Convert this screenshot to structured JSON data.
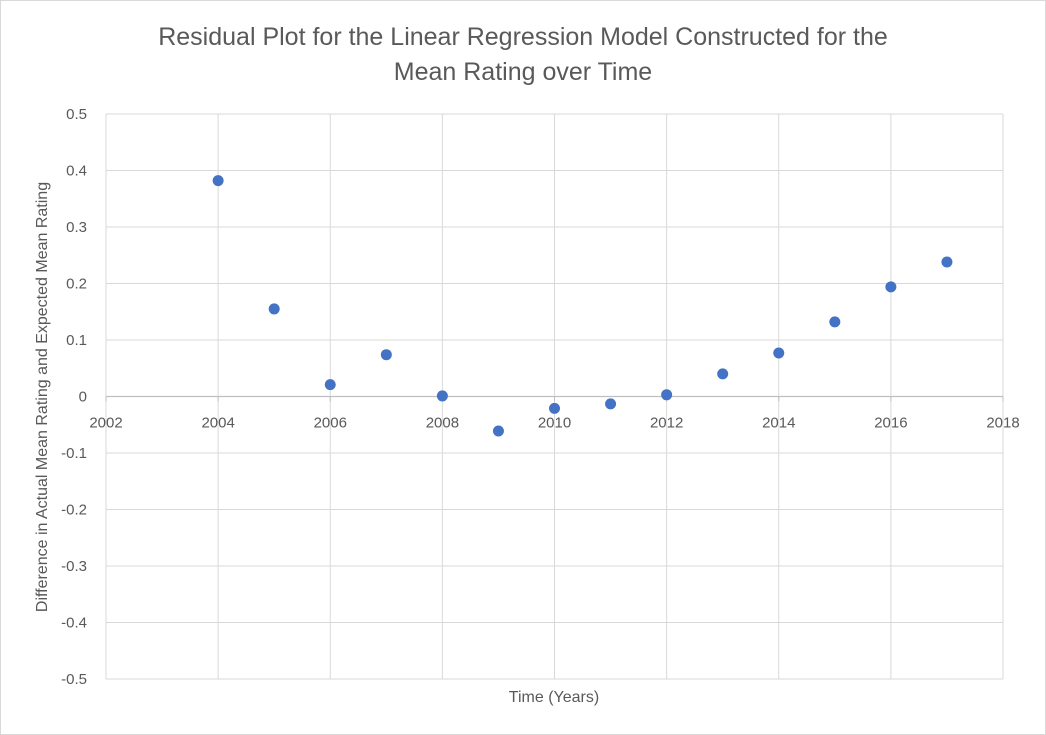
{
  "chart_data": {
    "type": "scatter",
    "title_lines": [
      "Residual Plot for the Linear Regression Model Constructed for the",
      "Mean Rating over Time"
    ],
    "xlabel": "Time (Years)",
    "ylabel": "Difference in Actual Mean Rating and Expected Mean Rating",
    "xlim": [
      2002,
      2018
    ],
    "ylim": [
      -0.5,
      0.5
    ],
    "x_ticks": [
      "2002",
      "2004",
      "2006",
      "2008",
      "2010",
      "2012",
      "2014",
      "2016",
      "2018"
    ],
    "y_ticks": [
      "0.5",
      "0.4",
      "0.3",
      "0.2",
      "0.1",
      "0",
      "-0.1",
      "-0.2",
      "-0.3",
      "-0.4",
      "-0.5"
    ],
    "grid": true,
    "marker_color": "#4472c4",
    "gridline_color": "#d9d9d9",
    "points": [
      {
        "x": 2004,
        "y": 0.382
      },
      {
        "x": 2005,
        "y": 0.155
      },
      {
        "x": 2006,
        "y": 0.021
      },
      {
        "x": 2007,
        "y": 0.074
      },
      {
        "x": 2008,
        "y": 0.001
      },
      {
        "x": 2009,
        "y": -0.061
      },
      {
        "x": 2010,
        "y": -0.021
      },
      {
        "x": 2011,
        "y": -0.013
      },
      {
        "x": 2012,
        "y": 0.003
      },
      {
        "x": 2013,
        "y": 0.04
      },
      {
        "x": 2014,
        "y": 0.077
      },
      {
        "x": 2015,
        "y": 0.132
      },
      {
        "x": 2016,
        "y": 0.194
      },
      {
        "x": 2017,
        "y": 0.238
      }
    ]
  }
}
